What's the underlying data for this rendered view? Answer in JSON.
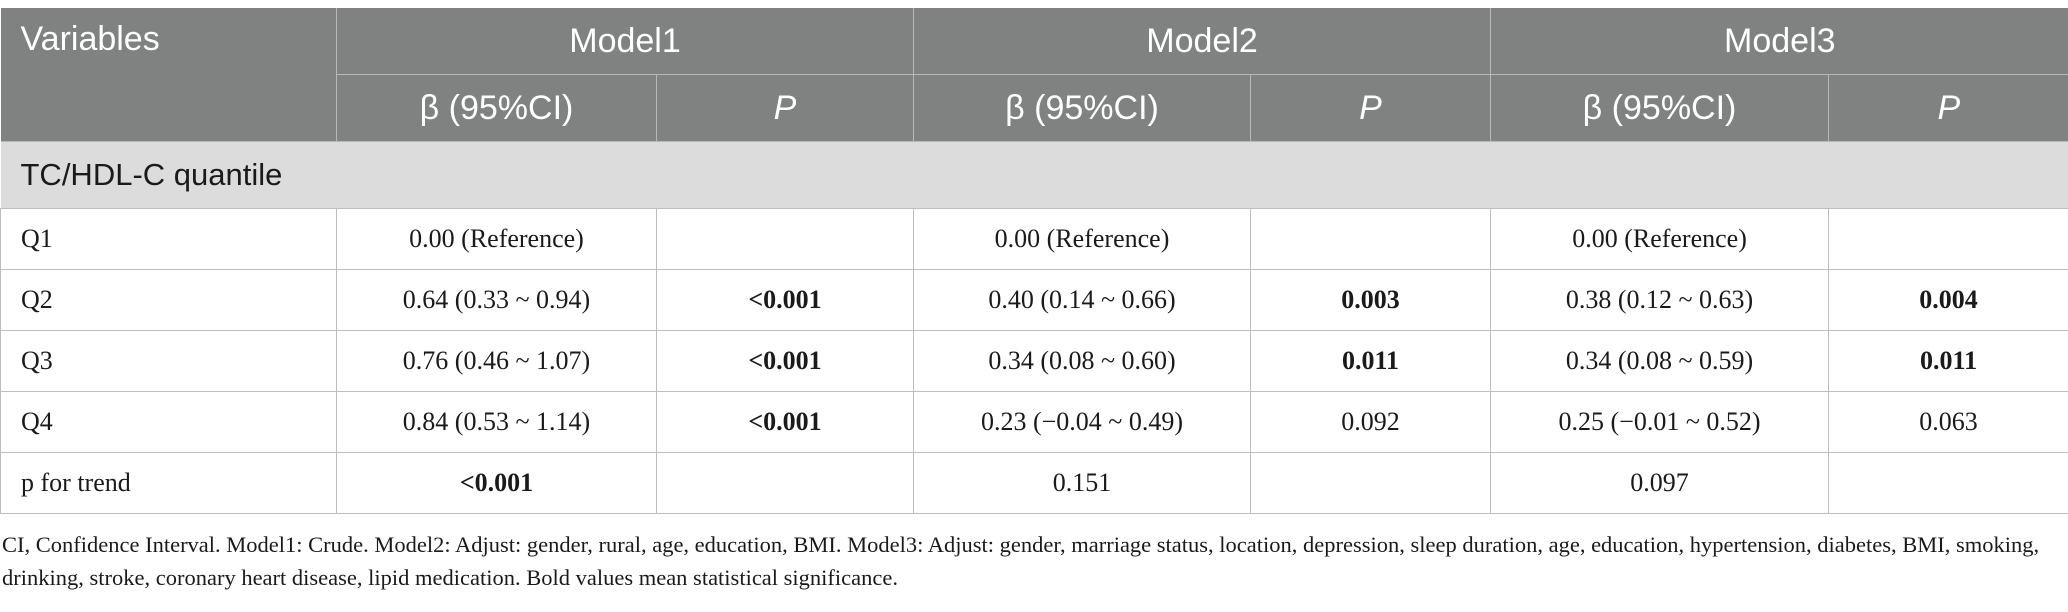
{
  "header": {
    "variables": "Variables",
    "models": [
      "Model1",
      "Model2",
      "Model3"
    ],
    "beta": "β (95%CI)",
    "p": "P"
  },
  "section_label": "TC/HDL-C quantile",
  "rows": [
    {
      "label": "Q1",
      "cells": [
        {
          "text": "0.00 (Reference)",
          "bold": false
        },
        {
          "text": "",
          "bold": false
        },
        {
          "text": "0.00 (Reference)",
          "bold": false
        },
        {
          "text": "",
          "bold": false
        },
        {
          "text": "0.00 (Reference)",
          "bold": false
        },
        {
          "text": "",
          "bold": false
        }
      ]
    },
    {
      "label": "Q2",
      "cells": [
        {
          "text": "0.64 (0.33 ~ 0.94)",
          "bold": false
        },
        {
          "text": "<0.001",
          "bold": true
        },
        {
          "text": "0.40 (0.14 ~ 0.66)",
          "bold": false
        },
        {
          "text": "0.003",
          "bold": true
        },
        {
          "text": "0.38 (0.12 ~ 0.63)",
          "bold": false
        },
        {
          "text": "0.004",
          "bold": true
        }
      ]
    },
    {
      "label": "Q3",
      "cells": [
        {
          "text": "0.76 (0.46 ~ 1.07)",
          "bold": false
        },
        {
          "text": "<0.001",
          "bold": true
        },
        {
          "text": "0.34 (0.08 ~ 0.60)",
          "bold": false
        },
        {
          "text": "0.011",
          "bold": true
        },
        {
          "text": "0.34 (0.08 ~ 0.59)",
          "bold": false
        },
        {
          "text": "0.011",
          "bold": true
        }
      ]
    },
    {
      "label": "Q4",
      "cells": [
        {
          "text": "0.84 (0.53 ~ 1.14)",
          "bold": false
        },
        {
          "text": "<0.001",
          "bold": true
        },
        {
          "text": "0.23 (−0.04 ~ 0.49)",
          "bold": false
        },
        {
          "text": "0.092",
          "bold": false
        },
        {
          "text": "0.25 (−0.01 ~ 0.52)",
          "bold": false
        },
        {
          "text": "0.063",
          "bold": false
        }
      ]
    },
    {
      "label": "p for trend",
      "cells": [
        {
          "text": "<0.001",
          "bold": true
        },
        {
          "text": "",
          "bold": false
        },
        {
          "text": "0.151",
          "bold": false
        },
        {
          "text": "",
          "bold": false
        },
        {
          "text": "0.097",
          "bold": false
        },
        {
          "text": "",
          "bold": false
        }
      ]
    }
  ],
  "footnote": "CI, Confidence Interval. Model1: Crude. Model2: Adjust: gender, rural, age, education, BMI. Model3: Adjust: gender, marriage status, location, depression, sleep duration, age, education, hypertension, diabetes, BMI, smoking, drinking, stroke, coronary heart disease, lipid medication. Bold values mean statistical significance."
}
